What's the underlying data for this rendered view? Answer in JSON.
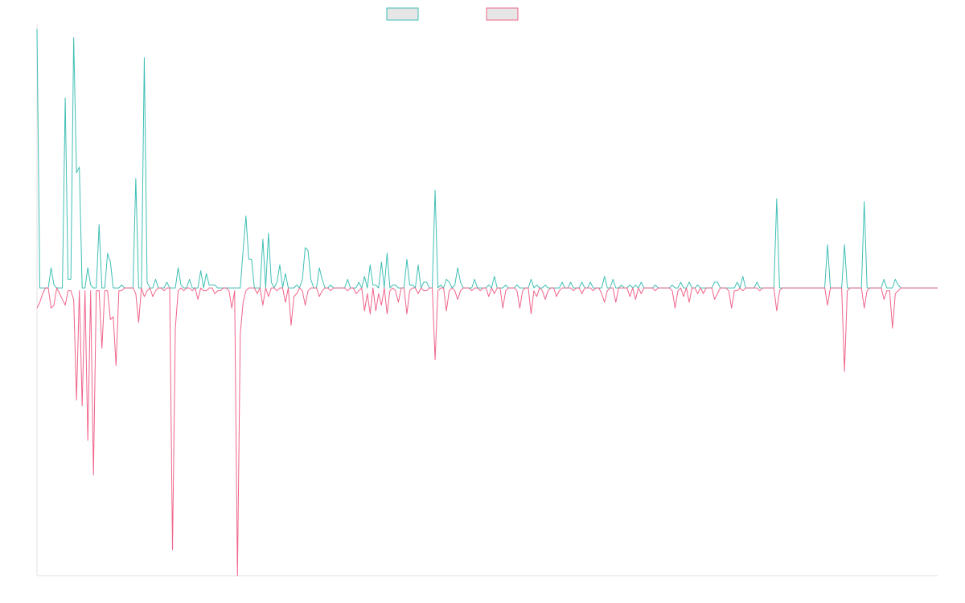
{
  "colors": {
    "series_a": "#3fbfb5",
    "series_b": "#f0648a",
    "legend_fill": "#e6e6e6",
    "axis": "#e0e0e0",
    "background": "#ffffff"
  },
  "legend": {
    "placement": "top-center",
    "entries": [
      "",
      ""
    ]
  },
  "chart_data": {
    "type": "line",
    "title": "",
    "xlabel": "",
    "ylabel": "",
    "grid": false,
    "legend_placement": "top-center",
    "x_count": 320,
    "ylim": [
      -100,
      90
    ],
    "series": [
      {
        "color": "#3fbfb5",
        "points": [
          [
            0,
            90
          ],
          [
            1,
            0
          ],
          [
            2,
            0
          ],
          [
            5,
            7
          ],
          [
            6,
            1
          ],
          [
            7,
            0
          ],
          [
            10,
            66
          ],
          [
            11,
            3
          ],
          [
            12,
            3
          ],
          [
            13,
            87
          ],
          [
            14,
            40
          ],
          [
            15,
            42
          ],
          [
            16,
            0
          ],
          [
            18,
            7
          ],
          [
            19,
            1
          ],
          [
            20,
            0
          ],
          [
            22,
            22
          ],
          [
            23,
            0
          ],
          [
            24,
            0
          ],
          [
            25,
            12
          ],
          [
            26,
            9
          ],
          [
            27,
            0
          ],
          [
            30,
            1
          ],
          [
            35,
            38
          ],
          [
            37,
            0
          ],
          [
            38,
            80
          ],
          [
            39,
            2
          ],
          [
            42,
            3
          ],
          [
            46,
            2
          ],
          [
            50,
            7
          ],
          [
            51,
            1
          ],
          [
            54,
            3
          ],
          [
            58,
            6
          ],
          [
            60,
            5
          ],
          [
            61,
            1
          ],
          [
            62,
            1
          ],
          [
            63,
            1
          ],
          [
            73,
            13
          ],
          [
            74,
            25
          ],
          [
            75,
            10
          ],
          [
            76,
            10
          ],
          [
            80,
            17
          ],
          [
            81,
            0
          ],
          [
            82,
            19
          ],
          [
            83,
            2
          ],
          [
            85,
            2
          ],
          [
            86,
            8
          ],
          [
            88,
            5
          ],
          [
            92,
            1
          ],
          [
            94,
            3
          ],
          [
            95,
            14
          ],
          [
            96,
            13
          ],
          [
            97,
            3
          ],
          [
            100,
            7
          ],
          [
            101,
            3
          ],
          [
            104,
            1
          ],
          [
            110,
            3
          ],
          [
            114,
            2
          ],
          [
            116,
            4
          ],
          [
            118,
            8
          ],
          [
            119,
            1
          ],
          [
            120,
            1
          ],
          [
            122,
            9
          ],
          [
            124,
            12
          ],
          [
            126,
            1
          ],
          [
            127,
            1
          ],
          [
            131,
            10
          ],
          [
            132,
            1
          ],
          [
            133,
            1
          ],
          [
            135,
            8
          ],
          [
            137,
            2
          ],
          [
            138,
            2
          ],
          [
            141,
            34
          ],
          [
            143,
            1
          ],
          [
            145,
            3
          ],
          [
            146,
            2
          ],
          [
            148,
            1
          ],
          [
            149,
            7
          ],
          [
            150,
            2
          ],
          [
            155,
            3
          ],
          [
            160,
            1
          ],
          [
            162,
            4
          ],
          [
            166,
            1
          ],
          [
            170,
            1
          ],
          [
            175,
            3
          ],
          [
            177,
            1
          ],
          [
            180,
            1
          ],
          [
            186,
            2
          ],
          [
            189,
            2
          ],
          [
            193,
            2
          ],
          [
            196,
            2
          ],
          [
            201,
            4
          ],
          [
            202,
            0
          ],
          [
            204,
            3
          ],
          [
            207,
            1
          ],
          [
            210,
            1
          ],
          [
            212,
            1
          ],
          [
            214,
            2
          ],
          [
            219,
            1
          ],
          [
            225,
            1
          ],
          [
            228,
            2
          ],
          [
            231,
            2
          ],
          [
            234,
            1
          ],
          [
            240,
            2
          ],
          [
            241,
            2
          ],
          [
            248,
            2
          ],
          [
            250,
            4
          ],
          [
            255,
            2
          ],
          [
            262,
            31
          ],
          [
            264,
            0
          ],
          [
            280,
            15
          ],
          [
            286,
            15
          ],
          [
            293,
            30
          ],
          [
            294,
            0
          ],
          [
            300,
            3
          ],
          [
            304,
            3
          ],
          [
            305,
            1
          ]
        ]
      },
      {
        "color": "#f0648a",
        "points": [
          [
            0,
            -7
          ],
          [
            1,
            -5
          ],
          [
            2,
            -2
          ],
          [
            3,
            0
          ],
          [
            5,
            -7
          ],
          [
            6,
            -6
          ],
          [
            8,
            -2
          ],
          [
            9,
            -4
          ],
          [
            10,
            -6
          ],
          [
            11,
            -1
          ],
          [
            12,
            -1
          ],
          [
            13,
            -4
          ],
          [
            14,
            -39
          ],
          [
            15,
            -1
          ],
          [
            16,
            -41
          ],
          [
            17,
            -1
          ],
          [
            18,
            -53
          ],
          [
            19,
            -1
          ],
          [
            20,
            -65
          ],
          [
            21,
            -1
          ],
          [
            22,
            -1
          ],
          [
            23,
            -21
          ],
          [
            24,
            -1
          ],
          [
            25,
            -1
          ],
          [
            26,
            -11
          ],
          [
            27,
            -10
          ],
          [
            28,
            -27
          ],
          [
            29,
            -1
          ],
          [
            30,
            -1
          ],
          [
            35,
            -2
          ],
          [
            36,
            -12
          ],
          [
            38,
            -3
          ],
          [
            39,
            -1
          ],
          [
            41,
            -3
          ],
          [
            42,
            -1
          ],
          [
            45,
            -1
          ],
          [
            48,
            -91
          ],
          [
            49,
            -14
          ],
          [
            50,
            -1
          ],
          [
            52,
            -1
          ],
          [
            55,
            -1
          ],
          [
            57,
            -4
          ],
          [
            59,
            -1
          ],
          [
            60,
            -1
          ],
          [
            63,
            -2
          ],
          [
            64,
            -1
          ],
          [
            65,
            -1
          ],
          [
            68,
            -1
          ],
          [
            69,
            -7
          ],
          [
            70,
            -1
          ],
          [
            71,
            -100
          ],
          [
            72,
            -16
          ],
          [
            73,
            -5
          ],
          [
            74,
            -1
          ],
          [
            78,
            -2
          ],
          [
            80,
            -6
          ],
          [
            82,
            -3
          ],
          [
            85,
            -1
          ],
          [
            88,
            -5
          ],
          [
            90,
            -13
          ],
          [
            91,
            -3
          ],
          [
            92,
            -2
          ],
          [
            94,
            -1
          ],
          [
            95,
            -6
          ],
          [
            96,
            -1
          ],
          [
            100,
            -3
          ],
          [
            101,
            -1
          ],
          [
            104,
            -1
          ],
          [
            110,
            -1
          ],
          [
            113,
            -2
          ],
          [
            114,
            -1
          ],
          [
            116,
            -8
          ],
          [
            117,
            -2
          ],
          [
            118,
            -9
          ],
          [
            120,
            -8
          ],
          [
            121,
            -2
          ],
          [
            122,
            -6
          ],
          [
            124,
            -9
          ],
          [
            125,
            -1
          ],
          [
            127,
            -1
          ],
          [
            128,
            -5
          ],
          [
            131,
            -9
          ],
          [
            132,
            -1
          ],
          [
            135,
            -2
          ],
          [
            137,
            -1
          ],
          [
            138,
            -1
          ],
          [
            141,
            -25
          ],
          [
            142,
            -1
          ],
          [
            145,
            -8
          ],
          [
            146,
            -1
          ],
          [
            148,
            -1
          ],
          [
            149,
            -4
          ],
          [
            150,
            -1
          ],
          [
            154,
            -1
          ],
          [
            157,
            -1
          ],
          [
            160,
            -3
          ],
          [
            162,
            -2
          ],
          [
            165,
            -7
          ],
          [
            166,
            -1
          ],
          [
            170,
            -1
          ],
          [
            171,
            -7
          ],
          [
            172,
            -1
          ],
          [
            175,
            -9
          ],
          [
            176,
            -1
          ],
          [
            177,
            -3
          ],
          [
            179,
            -1
          ],
          [
            180,
            -4
          ],
          [
            181,
            -1
          ],
          [
            184,
            -3
          ],
          [
            185,
            -1
          ],
          [
            190,
            -1
          ],
          [
            193,
            -2
          ],
          [
            197,
            -1
          ],
          [
            200,
            -2
          ],
          [
            201,
            -5
          ],
          [
            202,
            -1
          ],
          [
            205,
            -5
          ],
          [
            210,
            -3
          ],
          [
            212,
            -4
          ],
          [
            214,
            -2
          ],
          [
            219,
            -1
          ],
          [
            225,
            -1
          ],
          [
            226,
            -7
          ],
          [
            227,
            -1
          ],
          [
            229,
            -3
          ],
          [
            231,
            -5
          ],
          [
            234,
            -2
          ],
          [
            236,
            -2
          ],
          [
            240,
            -4
          ],
          [
            241,
            -2
          ],
          [
            245,
            -1
          ],
          [
            246,
            -7
          ],
          [
            247,
            -1
          ],
          [
            248,
            -1
          ],
          [
            250,
            -1
          ],
          [
            256,
            -1
          ],
          [
            262,
            -8
          ],
          [
            263,
            -1
          ],
          [
            280,
            -6
          ],
          [
            286,
            -29
          ],
          [
            287,
            -1
          ],
          [
            293,
            -7
          ],
          [
            294,
            -1
          ],
          [
            300,
            -4
          ],
          [
            301,
            -1
          ],
          [
            302,
            -1
          ],
          [
            303,
            -14
          ],
          [
            304,
            -2
          ],
          [
            305,
            -1
          ]
        ]
      }
    ]
  }
}
